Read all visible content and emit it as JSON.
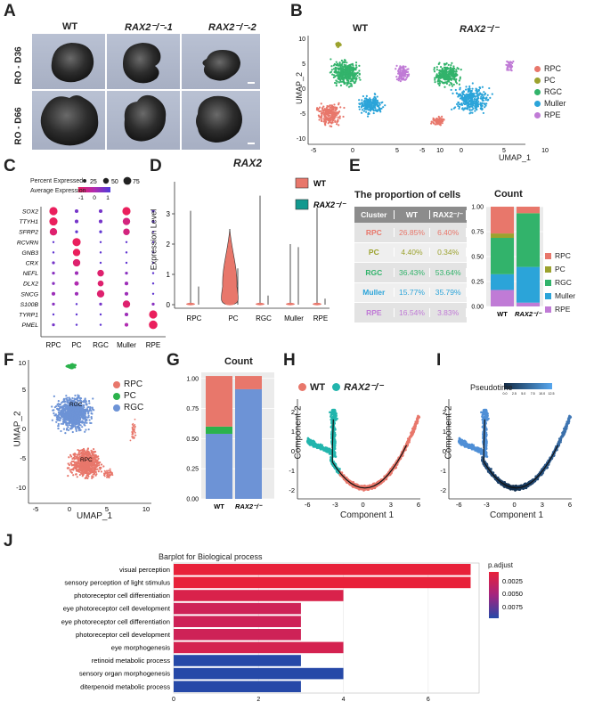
{
  "panels": {
    "A": {
      "letter": "A",
      "columns": [
        "WT",
        "RAX2⁻/⁻-1",
        "RAX2⁻/⁻-2"
      ],
      "rows": [
        "RO - D36",
        "RO - D66"
      ]
    },
    "B": {
      "letter": "B",
      "left_title": "WT",
      "right_title": "RAX2⁻/⁻",
      "xlabel": "UMAP_1",
      "ylabel": "UMAP_2",
      "x_ticks": [
        "-5",
        "0",
        "5",
        "10"
      ],
      "y_ticks": [
        "10",
        "5",
        "0",
        "-5",
        "-10"
      ],
      "legend": [
        {
          "name": "RPC",
          "color": "#e8776b"
        },
        {
          "name": "PC",
          "color": "#9ca22e"
        },
        {
          "name": "RGC",
          "color": "#32b36b"
        },
        {
          "name": "Muller",
          "color": "#2ba4d9"
        },
        {
          "name": "RPE",
          "color": "#c07bd6"
        }
      ]
    },
    "C": {
      "letter": "C",
      "legend_pct_title": "Percent Expressed",
      "legend_pct_values": [
        "25",
        "50",
        "75"
      ],
      "legend_expr_title": "Average Expression",
      "legend_expr_ticks": [
        "-1",
        "0",
        "1"
      ],
      "genes": [
        "SOX2",
        "TTYH1",
        "SFRP2",
        "RCVRN",
        "GNB3",
        "CRX",
        "NEFL",
        "DLX2",
        "SNCG",
        "S100B",
        "TYRP1",
        "PMEL"
      ],
      "clusters": [
        "RPC",
        "PC",
        "RGC",
        "Muller",
        "RPE"
      ]
    },
    "D": {
      "letter": "D",
      "title": "RAX2",
      "ylabel": "Expression Level",
      "y_ticks": [
        "0",
        "1",
        "2",
        "3"
      ],
      "x_labels": [
        "RPC",
        "PC",
        "RGC",
        "Muller",
        "RPE"
      ],
      "legend": [
        {
          "name": "WT",
          "color": "#e8776b"
        },
        {
          "name": "RAX2⁻/⁻",
          "color": "#12998f"
        }
      ]
    },
    "E": {
      "letter": "E",
      "table_title": "The proportion of cells",
      "table_header": [
        "Cluster",
        "WT",
        "RAX2⁻/⁻"
      ],
      "table_rows": [
        {
          "cluster": "RPC",
          "wt": "26.85%",
          "ko": "6.40%",
          "color": "#e8776b"
        },
        {
          "cluster": "PC",
          "wt": "4.40%",
          "ko": "0.34%",
          "color": "#9ca22e"
        },
        {
          "cluster": "RGC",
          "wt": "36.43%",
          "ko": "53.64%",
          "color": "#32b36b"
        },
        {
          "cluster": "Muller",
          "wt": "15.77%",
          "ko": "35.79%",
          "color": "#2ba4d9"
        },
        {
          "cluster": "RPE",
          "wt": "16.54%",
          "ko": "3.83%",
          "color": "#c07bd6"
        }
      ],
      "bar_title": "Count",
      "bar_x": [
        "WT",
        "RAX2⁻/⁻"
      ],
      "y_ticks": [
        "0.00",
        "0.25",
        "0.50",
        "0.75",
        "1.00"
      ],
      "legend": [
        "RPC",
        "PC",
        "RGC",
        "Muller",
        "RPE"
      ]
    },
    "F": {
      "letter": "F",
      "xlabel": "UMAP_1",
      "ylabel": "UMAP_2",
      "x_ticks": [
        "-5",
        "0",
        "5",
        "10"
      ],
      "y_ticks": [
        "10",
        "5",
        "0",
        "-5",
        "-10"
      ],
      "cluster_labels": [
        "RGC",
        "RPC"
      ],
      "legend": [
        {
          "name": "RPC",
          "color": "#e8776b"
        },
        {
          "name": "PC",
          "color": "#2bb24c"
        },
        {
          "name": "RGC",
          "color": "#6d93d6"
        }
      ]
    },
    "G": {
      "letter": "G",
      "title": "Count",
      "x_labels": [
        "WT",
        "RAX2⁻/⁻"
      ],
      "y_ticks": [
        "0.00",
        "0.25",
        "0.50",
        "0.75",
        "1.00"
      ]
    },
    "H": {
      "letter": "H",
      "legend": [
        {
          "name": "WT",
          "color": "#e8776b"
        },
        {
          "name": "RAX2⁻/⁻",
          "color": "#22b5ad"
        }
      ],
      "xlabel": "Component 1",
      "ylabel": "Component 2",
      "x_ticks": [
        "-6",
        "-3",
        "0",
        "3",
        "6"
      ],
      "y_ticks": [
        "2",
        "1",
        "0",
        "-1",
        "-2"
      ]
    },
    "I": {
      "letter": "I",
      "legend_title": "Pseudotime",
      "legend_ticks": [
        "0.0",
        "2.5",
        "5.0",
        "7.5",
        "10.0",
        "12.5"
      ],
      "xlabel": "Component 1",
      "ylabel": "Component 2",
      "x_ticks": [
        "-6",
        "-3",
        "0",
        "3",
        "6"
      ],
      "y_ticks": [
        "2",
        "1",
        "0",
        "-1",
        "-2"
      ]
    },
    "J": {
      "letter": "J",
      "title": "Barplot for Biological process",
      "legend_title": "p.adjust",
      "legend_ticks": [
        "0.0025",
        "0.0050",
        "0.0075"
      ],
      "x_ticks": [
        "0",
        "2",
        "4",
        "6"
      ]
    }
  },
  "chart_data": [
    {
      "type": "bar",
      "id": "E-count",
      "title": "Count",
      "categories": [
        "WT",
        "RAX2⁻/⁻"
      ],
      "series": [
        {
          "name": "RPE",
          "values": [
            0.1654,
            0.0383
          ],
          "color": "#c07bd6"
        },
        {
          "name": "Muller",
          "values": [
            0.1577,
            0.3579
          ],
          "color": "#2ba4d9"
        },
        {
          "name": "RGC",
          "values": [
            0.3643,
            0.5364
          ],
          "color": "#32b36b"
        },
        {
          "name": "PC",
          "values": [
            0.044,
            0.0034
          ],
          "color": "#9ca22e"
        },
        {
          "name": "RPC",
          "values": [
            0.2685,
            0.064
          ],
          "color": "#e8776b"
        }
      ],
      "ylim": [
        0,
        1
      ]
    },
    {
      "type": "bar",
      "id": "G-count",
      "title": "Count",
      "categories": [
        "WT",
        "RAX2⁻/⁻"
      ],
      "series": [
        {
          "name": "RGC",
          "values": [
            0.54,
            0.91
          ],
          "color": "#6d93d6"
        },
        {
          "name": "PC",
          "values": [
            0.06,
            0.0
          ],
          "color": "#2bb24c"
        },
        {
          "name": "RPC",
          "values": [
            0.42,
            0.11
          ],
          "color": "#e8776b"
        }
      ],
      "ylim": [
        0,
        1.05
      ]
    },
    {
      "type": "bar",
      "id": "J-go",
      "title": "Barplot for Biological process",
      "orientation": "horizontal",
      "categories": [
        "visual perception",
        "sensory perception of light stimulus",
        "photoreceptor cell differentiation",
        "eye photoreceptor cell development",
        "eye photoreceptor cell differentiation",
        "photoreceptor cell development",
        "eye morphogenesis",
        "retinoid metabolic process",
        "sensory organ morphogenesis",
        "diterpenoid metabolic process"
      ],
      "values": [
        7,
        7,
        4,
        3,
        3,
        3,
        4,
        3,
        4,
        3
      ],
      "p_adjust": [
        0.0015,
        0.0015,
        0.0025,
        0.0032,
        0.0032,
        0.0032,
        0.0028,
        0.0088,
        0.0088,
        0.0088
      ],
      "xlim": [
        0,
        7.2
      ],
      "color_scale": {
        "low": "#e8213a",
        "high": "#2649a8"
      }
    }
  ]
}
